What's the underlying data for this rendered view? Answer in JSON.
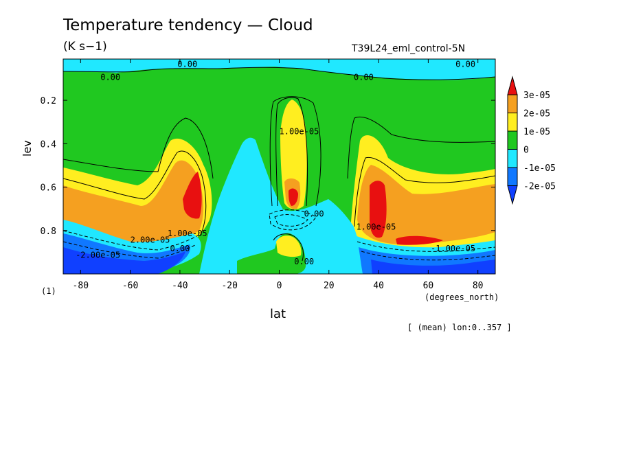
{
  "chart_data": {
    "type": "contour",
    "title": "Temperature tendency — Cloud",
    "units": "(K s−1)",
    "run_label": "T39L24_eml_control-5N",
    "xlabel": "lat",
    "x_units": "(degrees_north)",
    "ylabel": "lev",
    "y_units": "(1)",
    "footnote": "[ (mean) lon:0..357 ]",
    "xlim": [
      -87,
      87
    ],
    "ylim": [
      0.01,
      1.0
    ],
    "y_inverted": true,
    "x_ticks": [
      "-80",
      "-60",
      "-40",
      "-20",
      "0",
      "20",
      "40",
      "60",
      "80"
    ],
    "x_tick_values": [
      -80,
      -60,
      -40,
      -20,
      0,
      20,
      40,
      60,
      80
    ],
    "y_ticks": [
      "0.2",
      "0.4",
      "0.6",
      "0.8"
    ],
    "y_tick_values": [
      0.2,
      0.4,
      0.6,
      0.8
    ],
    "colorbar": {
      "labels": [
        "3e-05",
        "2e-05",
        "1e-05",
        "0",
        "-1e-05",
        "-2e-05"
      ],
      "colors": [
        "#e81010",
        "#f5a020",
        "#ffee20",
        "#20c820",
        "#20e8ff",
        "#1078ff",
        "#1040ff"
      ]
    },
    "contour_labels": [
      {
        "text": "0.00",
        "lon": -37,
        "lev": 0.03
      },
      {
        "text": "0.00",
        "lon": 75,
        "lev": 0.03
      },
      {
        "text": "0.00",
        "lon": -68,
        "lev": 0.09
      },
      {
        "text": "0.00",
        "lon": 34,
        "lev": 0.09
      },
      {
        "text": "1.00e-05",
        "lon": 8,
        "lev": 0.34
      },
      {
        "text": "0.00",
        "lon": 14,
        "lev": 0.72
      },
      {
        "text": "0.00",
        "lon": 10,
        "lev": 0.94
      },
      {
        "text": "1.00e-05",
        "lon": 39,
        "lev": 0.78
      },
      {
        "text": "2.00e-05",
        "lon": -52,
        "lev": 0.84
      },
      {
        "text": "1.00e-05",
        "lon": -37,
        "lev": 0.81
      },
      {
        "text": "0.00",
        "lon": -40,
        "lev": 0.88
      },
      {
        "text": "-2.00e-05",
        "lon": -73,
        "lev": 0.91
      },
      {
        "text": "-1.00e-05",
        "lon": 70,
        "lev": 0.88
      }
    ]
  }
}
